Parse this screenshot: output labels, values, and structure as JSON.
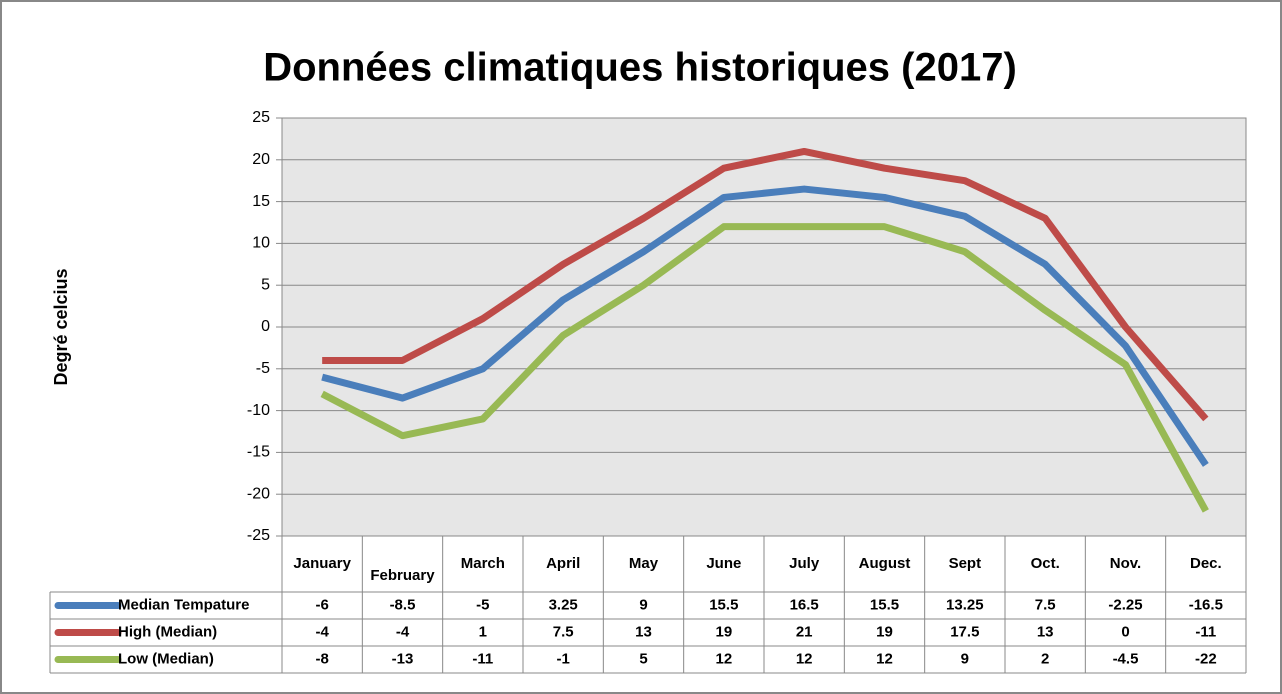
{
  "chart_data": {
    "type": "line",
    "title": "Données climatiques historiques (2017)",
    "y_label": "Degré celcius",
    "categories": [
      "January",
      "February",
      "March",
      "April",
      "May",
      "June",
      "July",
      "August",
      "Sept",
      "Oct.",
      "Nov.",
      "Dec."
    ],
    "series": [
      {
        "name": "Median Tempature",
        "color": "#4a7ebb",
        "values": [
          -6,
          -8.5,
          -5,
          3.25,
          9,
          15.5,
          16.5,
          15.5,
          13.25,
          7.5,
          -2.25,
          -16.5
        ]
      },
      {
        "name": "High (Median)",
        "color": "#be4b48",
        "values": [
          -4,
          -4,
          1,
          7.5,
          13,
          19,
          21,
          19,
          17.5,
          13,
          0,
          -11
        ]
      },
      {
        "name": "Low (Median)",
        "color": "#98b954",
        "values": [
          -8,
          -13,
          -11,
          -1,
          5,
          12,
          12,
          12,
          9,
          2,
          -4.5,
          -22
        ]
      }
    ],
    "ylim": [
      -25,
      25
    ],
    "yticks": [
      -25,
      -20,
      -15,
      -10,
      -5,
      0,
      5,
      10,
      15,
      20,
      25
    ],
    "grid": true
  }
}
